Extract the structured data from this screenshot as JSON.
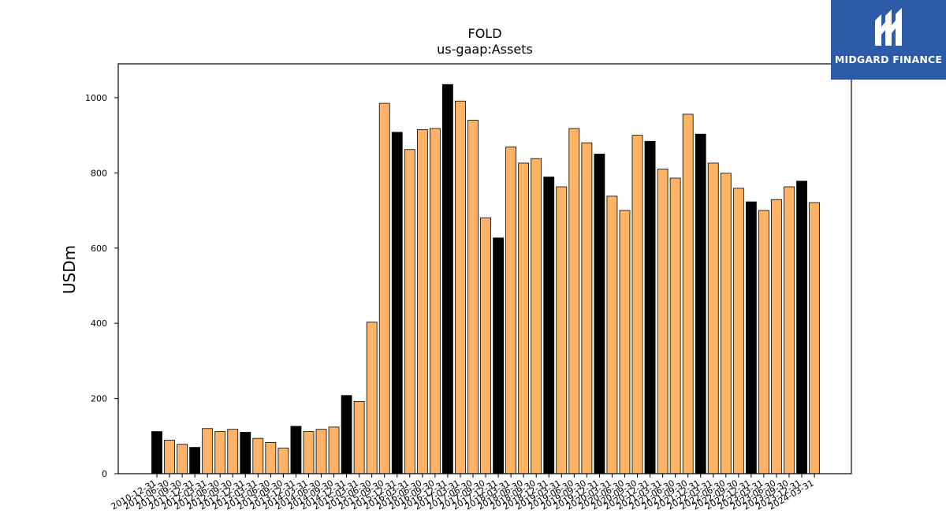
{
  "logo": {
    "text": "MIDGARD FINANCE",
    "bg_color": "#2e5ba8"
  },
  "chart_data": {
    "type": "bar",
    "title": "FOLD",
    "subtitle": "us-gaap:Assets",
    "ylabel": "USDm",
    "xlabel": "",
    "ylim": [
      0,
      1090
    ],
    "yticks": [
      0,
      200,
      400,
      600,
      800,
      1000
    ],
    "grid": false,
    "legend": "none",
    "colors": {
      "annual": "#000000",
      "quarterly": "#ffb366",
      "edge": "#000000"
    },
    "categories": [
      "2010-12-31",
      "2011-06-30",
      "2011-09-30",
      "2011-12-31",
      "2012-03-31",
      "2012-06-30",
      "2012-09-30",
      "2012-12-31",
      "2013-03-31",
      "2013-06-30",
      "2013-09-30",
      "2013-12-31",
      "2014-03-31",
      "2014-06-30",
      "2014-09-30",
      "2014-12-31",
      "2015-03-31",
      "2015-06-30",
      "2015-09-30",
      "2015-12-31",
      "2016-03-31",
      "2016-06-30",
      "2016-09-30",
      "2016-12-31",
      "2017-03-31",
      "2017-06-30",
      "2017-09-30",
      "2017-12-31",
      "2018-03-31",
      "2018-06-30",
      "2018-09-30",
      "2018-12-31",
      "2019-03-31",
      "2019-06-30",
      "2019-09-30",
      "2019-12-31",
      "2020-03-31",
      "2020-06-30",
      "2020-09-30",
      "2020-12-31",
      "2021-03-31",
      "2021-06-30",
      "2021-09-30",
      "2021-12-31",
      "2022-03-31",
      "2022-06-30",
      "2022-09-30",
      "2022-12-31",
      "2023-03-31",
      "2023-06-30",
      "2023-09-30",
      "2023-12-31",
      "2024-03-31"
    ],
    "values": [
      112,
      89,
      78,
      70,
      120,
      112,
      118,
      110,
      94,
      83,
      68,
      126,
      112,
      118,
      124,
      208,
      192,
      403,
      985,
      908,
      862,
      915,
      918,
      1035,
      991,
      940,
      680,
      627,
      869,
      826,
      838,
      789,
      763,
      918,
      880,
      850,
      738,
      700,
      900,
      884,
      810,
      786,
      956,
      903,
      826,
      799,
      759,
      723,
      700,
      729,
      763,
      778,
      721
    ],
    "highlight": [
      true,
      false,
      false,
      true,
      false,
      false,
      false,
      true,
      false,
      false,
      false,
      true,
      false,
      false,
      false,
      true,
      false,
      false,
      false,
      true,
      false,
      false,
      false,
      true,
      false,
      false,
      false,
      true,
      false,
      false,
      false,
      true,
      false,
      false,
      false,
      true,
      false,
      false,
      false,
      true,
      false,
      false,
      false,
      true,
      false,
      false,
      false,
      true,
      false,
      false,
      false,
      true,
      false
    ]
  }
}
